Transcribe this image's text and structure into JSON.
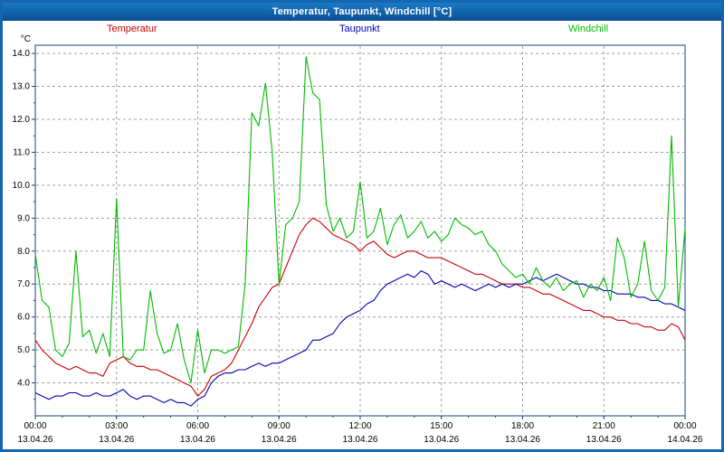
{
  "window": {
    "title": "Temperatur, Taupunkt, Windchill [°C]"
  },
  "legend": [
    {
      "label": "Temperatur",
      "color": "#cc0000"
    },
    {
      "label": "Taupunkt",
      "color": "#0000bb"
    },
    {
      "label": "Windchill",
      "color": "#00bb00"
    }
  ],
  "chart_data": {
    "type": "line",
    "title": "Temperatur, Taupunkt, Windchill [°C]",
    "ylabel": "°C",
    "xlabel": "",
    "ylim": [
      3.0,
      14.25
    ],
    "y_ticks": [
      4,
      5,
      6,
      7,
      8,
      9,
      10,
      11,
      12,
      13,
      14
    ],
    "y_tick_labels": [
      "4.0",
      "5.0",
      "6.0",
      "7.0",
      "8.0",
      "9.0",
      "10.0",
      "11.0",
      "12.0",
      "13.0",
      "14.0"
    ],
    "grid": true,
    "legend_position": "top",
    "x_tick_hours": [
      0,
      3,
      6,
      9,
      12,
      15,
      18,
      21,
      24
    ],
    "x_tick_times": [
      "00:00",
      "03:00",
      "06:00",
      "09:00",
      "12:00",
      "15:00",
      "18:00",
      "21:00",
      "00:00"
    ],
    "x_tick_dates": [
      "13.04.26",
      "13.04.26",
      "13.04.26",
      "13.04.26",
      "13.04.26",
      "13.04.26",
      "13.04.26",
      "13.04.26",
      "14.04.26"
    ],
    "x_hours": [
      0,
      0.25,
      0.5,
      0.75,
      1,
      1.25,
      1.5,
      1.75,
      2,
      2.25,
      2.5,
      2.75,
      3,
      3.25,
      3.5,
      3.75,
      4,
      4.25,
      4.5,
      4.75,
      5,
      5.25,
      5.5,
      5.75,
      6,
      6.25,
      6.5,
      6.75,
      7,
      7.25,
      7.5,
      7.75,
      8,
      8.25,
      8.5,
      8.75,
      9,
      9.25,
      9.5,
      9.75,
      10,
      10.25,
      10.5,
      10.75,
      11,
      11.25,
      11.5,
      11.75,
      12,
      12.25,
      12.5,
      12.75,
      13,
      13.25,
      13.5,
      13.75,
      14,
      14.25,
      14.5,
      14.75,
      15,
      15.25,
      15.5,
      15.75,
      16,
      16.25,
      16.5,
      16.75,
      17,
      17.25,
      17.5,
      17.75,
      18,
      18.25,
      18.5,
      18.75,
      19,
      19.25,
      19.5,
      19.75,
      20,
      20.25,
      20.5,
      20.75,
      21,
      21.25,
      21.5,
      21.75,
      22,
      22.25,
      22.5,
      22.75,
      23,
      23.25,
      23.5,
      23.75,
      24
    ],
    "series": [
      {
        "name": "Temperatur",
        "color": "#cc0000",
        "values": [
          5.3,
          5.0,
          4.8,
          4.6,
          4.5,
          4.4,
          4.5,
          4.4,
          4.3,
          4.3,
          4.2,
          4.6,
          4.7,
          4.8,
          4.6,
          4.5,
          4.5,
          4.4,
          4.4,
          4.3,
          4.2,
          4.1,
          4.0,
          3.9,
          3.6,
          3.8,
          4.2,
          4.3,
          4.4,
          4.6,
          5.0,
          5.4,
          5.8,
          6.3,
          6.6,
          6.9,
          7.0,
          7.5,
          8.0,
          8.5,
          8.8,
          9.0,
          8.9,
          8.7,
          8.5,
          8.4,
          8.3,
          8.2,
          8.0,
          8.2,
          8.3,
          8.1,
          7.9,
          7.8,
          7.9,
          8.0,
          8.0,
          7.9,
          7.8,
          7.8,
          7.8,
          7.7,
          7.6,
          7.5,
          7.4,
          7.3,
          7.3,
          7.2,
          7.1,
          7.0,
          7.0,
          7.0,
          6.9,
          6.9,
          6.8,
          6.7,
          6.7,
          6.6,
          6.5,
          6.4,
          6.3,
          6.2,
          6.2,
          6.1,
          6.0,
          6.0,
          5.9,
          5.9,
          5.8,
          5.8,
          5.7,
          5.7,
          5.6,
          5.6,
          5.8,
          5.7,
          5.3
        ]
      },
      {
        "name": "Taupunkt",
        "color": "#0000bb",
        "values": [
          3.7,
          3.6,
          3.5,
          3.6,
          3.6,
          3.7,
          3.7,
          3.6,
          3.6,
          3.7,
          3.6,
          3.6,
          3.7,
          3.8,
          3.6,
          3.5,
          3.6,
          3.6,
          3.5,
          3.4,
          3.5,
          3.4,
          3.4,
          3.3,
          3.5,
          3.6,
          4.0,
          4.2,
          4.3,
          4.3,
          4.4,
          4.4,
          4.5,
          4.6,
          4.5,
          4.6,
          4.6,
          4.7,
          4.8,
          4.9,
          5.0,
          5.3,
          5.3,
          5.4,
          5.5,
          5.8,
          6.0,
          6.1,
          6.2,
          6.4,
          6.5,
          6.8,
          7.0,
          7.1,
          7.2,
          7.3,
          7.2,
          7.4,
          7.3,
          7.0,
          7.1,
          7.0,
          6.9,
          7.0,
          6.9,
          6.8,
          6.9,
          7.0,
          6.9,
          7.0,
          6.9,
          7.0,
          7.0,
          7.1,
          7.2,
          7.1,
          7.2,
          7.3,
          7.2,
          7.1,
          7.0,
          7.0,
          6.9,
          6.9,
          6.8,
          6.8,
          6.7,
          6.7,
          6.7,
          6.6,
          6.6,
          6.5,
          6.5,
          6.4,
          6.4,
          6.3,
          6.2
        ]
      },
      {
        "name": "Windchill",
        "color": "#00bb00",
        "values": [
          7.9,
          6.5,
          6.3,
          5.0,
          4.8,
          5.2,
          8.0,
          5.4,
          5.6,
          4.9,
          5.5,
          4.8,
          9.6,
          4.8,
          4.7,
          5.0,
          5.0,
          6.8,
          5.5,
          4.9,
          5.0,
          5.8,
          4.7,
          4.0,
          5.6,
          4.3,
          5.0,
          5.0,
          4.9,
          5.0,
          5.1,
          7.0,
          12.2,
          11.8,
          13.1,
          11.0,
          7.0,
          8.8,
          9.0,
          9.5,
          13.9,
          12.8,
          12.6,
          9.4,
          8.6,
          9.0,
          8.4,
          8.6,
          10.1,
          8.4,
          8.6,
          9.3,
          8.2,
          8.8,
          9.1,
          8.4,
          8.6,
          8.9,
          8.4,
          8.6,
          8.3,
          8.5,
          9.0,
          8.8,
          8.7,
          8.5,
          8.6,
          8.2,
          8.0,
          7.6,
          7.4,
          7.2,
          7.3,
          7.0,
          7.5,
          7.1,
          6.9,
          7.2,
          6.8,
          7.0,
          7.1,
          6.6,
          7.0,
          6.8,
          7.2,
          6.5,
          8.4,
          7.8,
          6.6,
          7.0,
          8.3,
          6.8,
          6.5,
          6.9,
          11.5,
          6.3,
          8.7
        ]
      }
    ]
  },
  "colors": {
    "titlebar": "#0f5fa8",
    "window_border": "#1566b0",
    "grid": "#a0a0a0",
    "axis": "#16457c",
    "text": "#000000"
  }
}
